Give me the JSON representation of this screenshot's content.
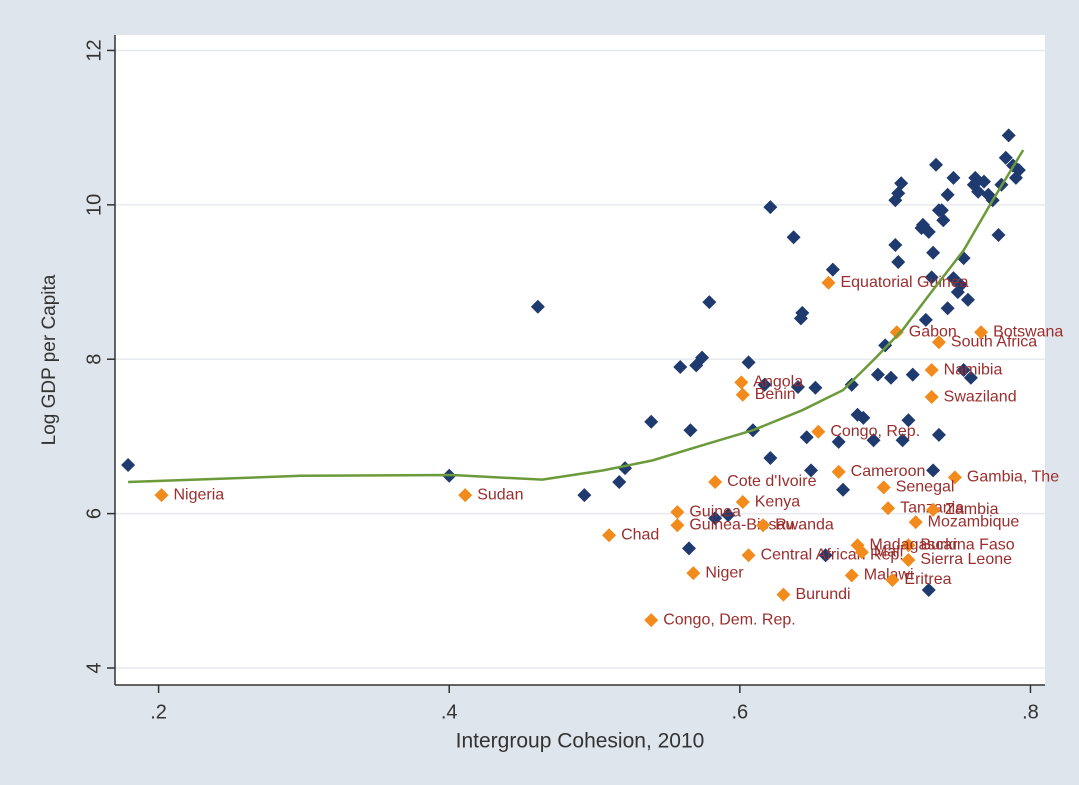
{
  "chart_data": {
    "type": "scatter",
    "x_label": "Intergroup Cohesion, 2010",
    "y_label": "Log GDP per Capita",
    "xlim": [
      0.17,
      0.81
    ],
    "ylim": [
      3.78,
      12.2
    ],
    "xticks": [
      {
        "value": 0.2,
        "label": ".2"
      },
      {
        "value": 0.4,
        "label": ".4"
      },
      {
        "value": 0.6,
        "label": ".6"
      },
      {
        "value": 0.8,
        "label": ".8"
      }
    ],
    "yticks": [
      4,
      6,
      8,
      10,
      12
    ],
    "grid": true,
    "series": [
      {
        "type": "scatter",
        "marker": "diamond",
        "color": "#1f3a6e",
        "x": [
          0.179,
          0.4,
          0.461,
          0.493,
          0.517,
          0.521,
          0.539,
          0.559,
          0.566,
          0.565,
          0.57,
          0.574,
          0.579,
          0.583,
          0.592,
          0.606,
          0.609,
          0.617,
          0.621,
          0.621,
          0.637,
          0.64,
          0.642,
          0.643,
          0.646,
          0.649,
          0.652,
          0.659,
          0.664,
          0.668,
          0.671,
          0.677,
          0.681,
          0.685,
          0.692,
          0.695,
          0.7,
          0.704,
          0.707,
          0.709,
          0.711,
          0.707,
          0.709,
          0.712,
          0.716,
          0.719,
          0.725,
          0.726,
          0.728,
          0.73,
          0.732,
          0.733,
          0.735,
          0.737,
          0.739,
          0.74,
          0.743,
          0.747,
          0.75,
          0.752,
          0.754,
          0.757,
          0.759,
          0.761,
          0.762,
          0.764,
          0.768,
          0.771,
          0.774,
          0.778,
          0.78,
          0.783,
          0.785,
          0.788,
          0.792,
          0.79,
          0.737,
          0.733,
          0.754,
          0.747,
          0.743,
          0.73
        ],
        "values": [
          6.63,
          6.49,
          8.68,
          6.24,
          6.41,
          6.59,
          7.19,
          7.9,
          7.08,
          5.55,
          7.92,
          8.02,
          8.74,
          5.94,
          5.98,
          7.96,
          7.08,
          7.67,
          9.97,
          6.72,
          9.58,
          7.64,
          8.53,
          8.6,
          6.99,
          6.56,
          7.63,
          5.46,
          9.16,
          6.93,
          6.31,
          7.67,
          7.28,
          7.24,
          6.95,
          7.8,
          8.18,
          7.76,
          10.06,
          10.15,
          10.28,
          9.48,
          9.26,
          6.95,
          7.21,
          7.8,
          9.7,
          9.74,
          8.51,
          9.65,
          9.06,
          9.38,
          10.52,
          9.93,
          9.93,
          9.8,
          8.66,
          9.05,
          8.87,
          8.96,
          7.86,
          8.77,
          7.76,
          10.26,
          10.35,
          10.17,
          10.3,
          10.13,
          10.06,
          9.61,
          10.26,
          10.61,
          10.9,
          10.51,
          10.45,
          10.35,
          7.02,
          6.56,
          9.31,
          10.35,
          10.13,
          5.01
        ]
      },
      {
        "type": "scatter",
        "marker": "diamond",
        "color": "#f28a1c",
        "label_color": "#9a2e2e",
        "x": [
          0.202,
          0.411,
          0.51,
          0.539,
          0.63,
          0.602,
          0.583,
          0.557,
          0.557,
          0.616,
          0.606,
          0.568,
          0.601,
          0.602,
          0.654,
          0.661,
          0.708,
          0.737,
          0.766,
          0.732,
          0.732,
          0.668,
          0.748,
          0.699,
          0.702,
          0.733,
          0.721,
          0.716,
          0.681,
          0.716,
          0.684,
          0.677,
          0.705
        ],
        "values": [
          6.24,
          6.24,
          5.72,
          4.62,
          4.95,
          6.15,
          6.41,
          6.02,
          5.85,
          5.85,
          5.46,
          5.23,
          7.7,
          7.54,
          7.06,
          8.99,
          8.35,
          8.22,
          8.35,
          7.86,
          7.51,
          6.54,
          6.47,
          6.34,
          6.07,
          6.05,
          5.89,
          5.59,
          5.59,
          5.4,
          5.5,
          5.2,
          5.14
        ],
        "labels": [
          "Nigeria",
          "Sudan",
          "Chad",
          "Congo, Dem. Rep.",
          "Burundi",
          "Kenya",
          "Cote d'Ivoire",
          "Guinea",
          "Guinea-Bissau",
          "Rwanda",
          "Central African Rep.",
          "Niger",
          "Angola",
          "Benin",
          "Congo, Rep.",
          "Equatorial Guinea",
          "Gabon",
          "South Africa",
          "Botswana",
          "Namibia",
          "Swaziland",
          "Cameroon",
          "Gambia, The",
          "Senegal",
          "Tanzania",
          "Zambia",
          "Mozambique",
          "Burkina Faso",
          "Madagascar",
          "Sierra Leone",
          "Mali",
          "Malawi",
          "Eritrea"
        ]
      },
      {
        "type": "line",
        "color": "#6a9a3a",
        "x": [
          0.179,
          0.298,
          0.402,
          0.464,
          0.506,
          0.54,
          0.575,
          0.609,
          0.643,
          0.671,
          0.692,
          0.712,
          0.733,
          0.754,
          0.774,
          0.795
        ],
        "values": [
          6.41,
          6.49,
          6.5,
          6.44,
          6.56,
          6.69,
          6.89,
          7.08,
          7.34,
          7.6,
          7.99,
          8.38,
          8.9,
          9.41,
          10.06,
          10.71
        ]
      }
    ]
  }
}
